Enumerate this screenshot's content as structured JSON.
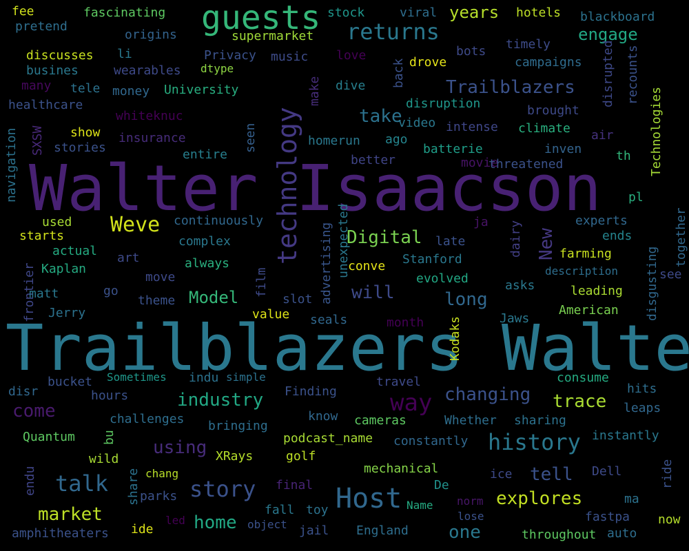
{
  "words": [
    {
      "text": "Walter Isaacson",
      "color": "#482173"
    },
    {
      "text": "Trailblazers Walter",
      "color": "#2a788e"
    },
    {
      "text": "guests",
      "color": "#35b779"
    },
    {
      "text": "technology",
      "color": "#443983"
    },
    {
      "text": "Host",
      "color": "#31688e"
    },
    {
      "text": "returns",
      "color": "#2a788e"
    },
    {
      "text": "Trailblazers",
      "color": "#3b528b"
    },
    {
      "text": "history",
      "color": "#2a788e"
    },
    {
      "text": "way",
      "color": "#440154"
    },
    {
      "text": "story",
      "color": "#3b528b"
    },
    {
      "text": "talk",
      "color": "#31688e"
    },
    {
      "text": "Weve",
      "color": "#d2e21b"
    },
    {
      "text": "Digital",
      "color": "#7ad151"
    },
    {
      "text": "industry",
      "color": "#22a884"
    },
    {
      "text": "changing",
      "color": "#3b528b"
    },
    {
      "text": "explores",
      "color": "#c2df23"
    },
    {
      "text": "market",
      "color": "#bddf26"
    },
    {
      "text": "home",
      "color": "#22a884"
    },
    {
      "text": "engage",
      "color": "#22a884"
    },
    {
      "text": "years",
      "color": "#b5de2b"
    },
    {
      "text": "take",
      "color": "#2c728e"
    },
    {
      "text": "long",
      "color": "#31688e"
    },
    {
      "text": "will",
      "color": "#3e4a89"
    },
    {
      "text": "Model",
      "color": "#35b779"
    },
    {
      "text": "trace",
      "color": "#aadc32"
    },
    {
      "text": "tell",
      "color": "#3b528b"
    },
    {
      "text": "one",
      "color": "#2a788e"
    },
    {
      "text": "using",
      "color": "#472c7a"
    },
    {
      "text": "come",
      "color": "#481a6c"
    },
    {
      "text": "New",
      "color": "#453882"
    },
    {
      "text": "fee",
      "color": "#d0e11c"
    },
    {
      "text": "pretend",
      "color": "#2e6e8e"
    },
    {
      "text": "fascinating",
      "color": "#5ec962"
    },
    {
      "text": "origins",
      "color": "#33638d"
    },
    {
      "text": "stock",
      "color": "#1f968b"
    },
    {
      "text": "supermarket",
      "color": "#a0da39"
    },
    {
      "text": "viral",
      "color": "#2e6e8e"
    },
    {
      "text": "hotels",
      "color": "#bddf26"
    },
    {
      "text": "blackboard",
      "color": "#2c728e"
    },
    {
      "text": "discusses",
      "color": "#c8e020"
    },
    {
      "text": "li",
      "color": "#2a788e"
    },
    {
      "text": "Privacy",
      "color": "#3b528b"
    },
    {
      "text": "music",
      "color": "#3e4c8a"
    },
    {
      "text": "love",
      "color": "#440154"
    },
    {
      "text": "bots",
      "color": "#3e4a89"
    },
    {
      "text": "timely",
      "color": "#3e4c8a"
    },
    {
      "text": "busines",
      "color": "#2a788e"
    },
    {
      "text": "wearables",
      "color": "#3e4a89"
    },
    {
      "text": "dtype",
      "color": "#8fd744"
    },
    {
      "text": "drove",
      "color": "#e5e419"
    },
    {
      "text": "campaigns",
      "color": "#2f6c8e"
    },
    {
      "text": "many",
      "color": "#46085c"
    },
    {
      "text": "tele",
      "color": "#2c728e"
    },
    {
      "text": "money",
      "color": "#31688e"
    },
    {
      "text": "University",
      "color": "#28ae80"
    },
    {
      "text": "dive",
      "color": "#277f8e"
    },
    {
      "text": "back",
      "color": "#3b528b"
    },
    {
      "text": "make",
      "color": "#472d7b"
    },
    {
      "text": "healthcare",
      "color": "#3b528b"
    },
    {
      "text": "whiteknuc",
      "color": "#440154"
    },
    {
      "text": "disruption",
      "color": "#1f978b"
    },
    {
      "text": "brought",
      "color": "#3e4a89"
    },
    {
      "text": "disrupted",
      "color": "#3e4989"
    },
    {
      "text": "recounts",
      "color": "#3b528b"
    },
    {
      "text": "Technologies",
      "color": "#a5db36"
    },
    {
      "text": "SXSW",
      "color": "#482979"
    },
    {
      "text": "show",
      "color": "#dde318"
    },
    {
      "text": "video",
      "color": "#2a788e"
    },
    {
      "text": "intense",
      "color": "#3f4788"
    },
    {
      "text": "climate",
      "color": "#29af7f"
    },
    {
      "text": "air",
      "color": "#46327e"
    },
    {
      "text": "stories",
      "color": "#3b528b"
    },
    {
      "text": "insurance",
      "color": "#472c7a"
    },
    {
      "text": "seen",
      "color": "#355f8d"
    },
    {
      "text": "homerun",
      "color": "#2a788e"
    },
    {
      "text": "ago",
      "color": "#25858e"
    },
    {
      "text": "batterie",
      "color": "#1f9e89"
    },
    {
      "text": "inven",
      "color": "#33638d"
    },
    {
      "text": "navigation",
      "color": "#2c728e"
    },
    {
      "text": "entire",
      "color": "#277f8e"
    },
    {
      "text": "better",
      "color": "#404588"
    },
    {
      "text": "movie",
      "color": "#471365"
    },
    {
      "text": "threatened",
      "color": "#3b528b"
    },
    {
      "text": "th",
      "color": "#32b67a"
    },
    {
      "text": "pl",
      "color": "#29af7f"
    },
    {
      "text": "used",
      "color": "#a8db34"
    },
    {
      "text": "continuously",
      "color": "#31688e"
    },
    {
      "text": "advertising",
      "color": "#39568c"
    },
    {
      "text": "unexpected",
      "color": "#2a788e"
    },
    {
      "text": "ja",
      "color": "#471365"
    },
    {
      "text": "experts",
      "color": "#31688e"
    },
    {
      "text": "together",
      "color": "#31688e"
    },
    {
      "text": "starts",
      "color": "#d2e21b"
    },
    {
      "text": "complex",
      "color": "#2a788e"
    },
    {
      "text": "late",
      "color": "#3b528b"
    },
    {
      "text": "dairy",
      "color": "#423f85"
    },
    {
      "text": "ends",
      "color": "#25848e"
    },
    {
      "text": "actual",
      "color": "#25ab82"
    },
    {
      "text": "always",
      "color": "#2ab07f"
    },
    {
      "text": "conve",
      "color": "#e5e419"
    },
    {
      "text": "Stanford",
      "color": "#2a788e"
    },
    {
      "text": "farming",
      "color": "#c8e020"
    },
    {
      "text": "disgusting",
      "color": "#31688e"
    },
    {
      "text": "frontier",
      "color": "#3f4788"
    },
    {
      "text": "Kaplan",
      "color": "#25ab82"
    },
    {
      "text": "art",
      "color": "#3e4a89"
    },
    {
      "text": "description",
      "color": "#2e6e8e"
    },
    {
      "text": "see",
      "color": "#3e4a89"
    },
    {
      "text": "move",
      "color": "#3e4a89"
    },
    {
      "text": "evolved",
      "color": "#22a884"
    },
    {
      "text": "asks",
      "color": "#2a788e"
    },
    {
      "text": "leading",
      "color": "#aadc32"
    },
    {
      "text": "matt",
      "color": "#2a788e"
    },
    {
      "text": "go",
      "color": "#3b528b"
    },
    {
      "text": "theme",
      "color": "#3b528b"
    },
    {
      "text": "film",
      "color": "#3e4a89"
    },
    {
      "text": "slot",
      "color": "#3b528b"
    },
    {
      "text": "Jerry",
      "color": "#2c728e"
    },
    {
      "text": "value",
      "color": "#dde318"
    },
    {
      "text": "seals",
      "color": "#31688e"
    },
    {
      "text": "month",
      "color": "#440154"
    },
    {
      "text": "Kodaks",
      "color": "#c8e020"
    },
    {
      "text": "Jaws",
      "color": "#2a788e"
    },
    {
      "text": "American",
      "color": "#7ad151"
    },
    {
      "text": "Sometimes",
      "color": "#1f988b"
    },
    {
      "text": "bucket",
      "color": "#3b528b"
    },
    {
      "text": "indu",
      "color": "#2c728e"
    },
    {
      "text": "simple",
      "color": "#2c728e"
    },
    {
      "text": "travel",
      "color": "#3e4a89"
    },
    {
      "text": "consume",
      "color": "#25ab82"
    },
    {
      "text": "disr",
      "color": "#31688e"
    },
    {
      "text": "hours",
      "color": "#3b528b"
    },
    {
      "text": "Finding",
      "color": "#3b528b"
    },
    {
      "text": "hits",
      "color": "#2e6e8e"
    },
    {
      "text": "leaps",
      "color": "#31688e"
    },
    {
      "text": "challenges",
      "color": "#2e6e8e"
    },
    {
      "text": "bringing",
      "color": "#2e6e8e"
    },
    {
      "text": "know",
      "color": "#31688e"
    },
    {
      "text": "cameras",
      "color": "#5ec962"
    },
    {
      "text": "Whether",
      "color": "#2e6e8e"
    },
    {
      "text": "sharing",
      "color": "#2c728e"
    },
    {
      "text": "Quantum",
      "color": "#5ec962"
    },
    {
      "text": "bu",
      "color": "#5ec962"
    },
    {
      "text": "podcast_name",
      "color": "#a8db34"
    },
    {
      "text": "constantly",
      "color": "#31688e"
    },
    {
      "text": "instantly",
      "color": "#2a788e"
    },
    {
      "text": "wild",
      "color": "#a8db34"
    },
    {
      "text": "XRays",
      "color": "#b5de2b"
    },
    {
      "text": "golf",
      "color": "#bddf26"
    },
    {
      "text": "chang",
      "color": "#b8de29"
    },
    {
      "text": "mechanical",
      "color": "#86d549"
    },
    {
      "text": "ice",
      "color": "#3e4a89"
    },
    {
      "text": "Dell",
      "color": "#3e4a89"
    },
    {
      "text": "ride",
      "color": "#3b528b"
    },
    {
      "text": "endu",
      "color": "#404588"
    },
    {
      "text": "share",
      "color": "#2c728e"
    },
    {
      "text": "final",
      "color": "#482475"
    },
    {
      "text": "De",
      "color": "#21918c"
    },
    {
      "text": "parks",
      "color": "#3b528b"
    },
    {
      "text": "norm",
      "color": "#481668"
    },
    {
      "text": "ma",
      "color": "#2c728e"
    },
    {
      "text": "led",
      "color": "#440154"
    },
    {
      "text": "object",
      "color": "#3b528b"
    },
    {
      "text": "fall",
      "color": "#2a788e"
    },
    {
      "text": "toy",
      "color": "#2c728e"
    },
    {
      "text": "Name",
      "color": "#25ab82"
    },
    {
      "text": "lose",
      "color": "#3b528b"
    },
    {
      "text": "fastpa",
      "color": "#3b528b"
    },
    {
      "text": "now",
      "color": "#b5de2b"
    },
    {
      "text": "amphitheaters",
      "color": "#3b528b"
    },
    {
      "text": "ide",
      "color": "#dde318"
    },
    {
      "text": "jail",
      "color": "#3b528b"
    },
    {
      "text": "England",
      "color": "#2e6e8e"
    },
    {
      "text": "throughout",
      "color": "#5ec962"
    },
    {
      "text": "auto",
      "color": "#2e6e8e"
    }
  ]
}
